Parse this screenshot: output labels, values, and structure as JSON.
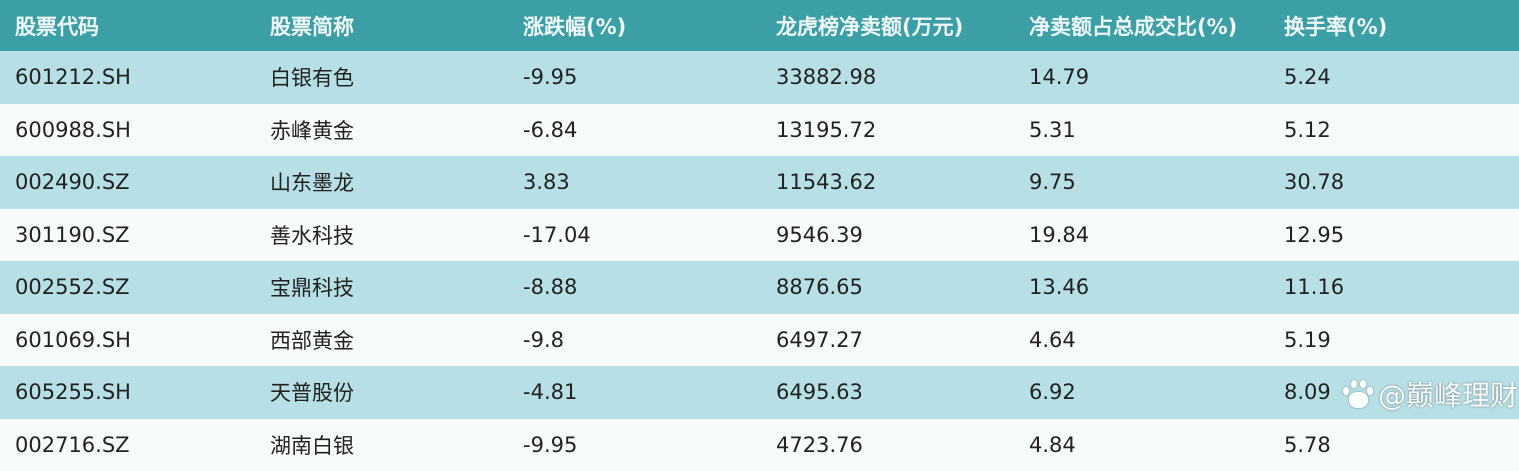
{
  "table": {
    "headers": [
      "股票代码",
      "股票简称",
      "涨跌幅(%)",
      "龙虎榜净卖额(万元)",
      "净卖额占总成交比(%)",
      "换手率(%)"
    ],
    "rows": [
      [
        "601212.SH",
        "白银有色",
        "-9.95",
        "33882.98",
        "14.79",
        "5.24"
      ],
      [
        "600988.SH",
        "赤峰黄金",
        "-6.84",
        "13195.72",
        "5.31",
        "5.12"
      ],
      [
        "002490.SZ",
        "山东墨龙",
        "3.83",
        "11543.62",
        "9.75",
        "30.78"
      ],
      [
        "301190.SZ",
        "善水科技",
        "-17.04",
        "9546.39",
        "19.84",
        "12.95"
      ],
      [
        "002552.SZ",
        "宝鼎科技",
        "-8.88",
        "8876.65",
        "13.46",
        "11.16"
      ],
      [
        "601069.SH",
        "西部黄金",
        "-9.8",
        "6497.27",
        "4.64",
        "5.19"
      ],
      [
        "605255.SH",
        "天普股份",
        "-4.81",
        "6495.63",
        "6.92",
        "8.09"
      ],
      [
        "002716.SZ",
        "湖南白银",
        "-9.95",
        "4723.76",
        "4.84",
        "5.78"
      ]
    ]
  },
  "watermark": {
    "text": "@巅峰理财",
    "logo": "baidu-paw-icon"
  },
  "colors": {
    "header": "#3d9fa6",
    "row_alt": "#b7dfe6"
  }
}
